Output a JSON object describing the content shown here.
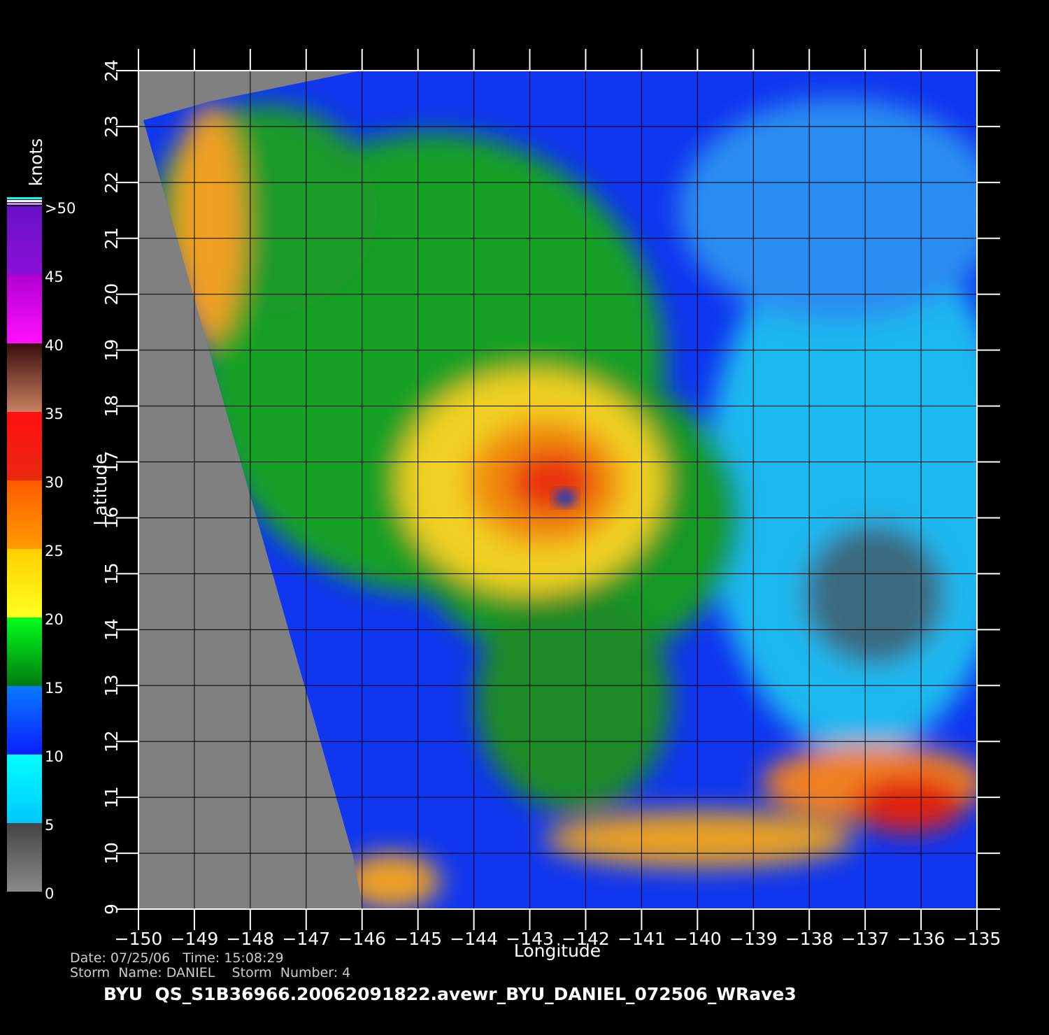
{
  "map": {
    "xlabel": "Longitude",
    "ylabel": "Latitude",
    "xlim": [
      -150,
      -135
    ],
    "ylim": [
      9,
      24
    ],
    "xticks": [
      {
        "value": -150,
        "label": "−150"
      },
      {
        "value": -149,
        "label": "−149"
      },
      {
        "value": -148,
        "label": "−148"
      },
      {
        "value": -147,
        "label": "−147"
      },
      {
        "value": -146,
        "label": "−146"
      },
      {
        "value": -145,
        "label": "−145"
      },
      {
        "value": -144,
        "label": "−144"
      },
      {
        "value": -143,
        "label": "−143"
      },
      {
        "value": -142,
        "label": "−142"
      },
      {
        "value": -141,
        "label": "−141"
      },
      {
        "value": -140,
        "label": "−140"
      },
      {
        "value": -139,
        "label": "−139"
      },
      {
        "value": -138,
        "label": "−138"
      },
      {
        "value": -137,
        "label": "−137"
      },
      {
        "value": -136,
        "label": "−136"
      },
      {
        "value": -135,
        "label": "−135"
      }
    ],
    "yticks": [
      9,
      10,
      11,
      12,
      13,
      14,
      15,
      16,
      17,
      18,
      19,
      20,
      21,
      22,
      23,
      24
    ]
  },
  "colorbar": {
    "label": "knots",
    "lim": [
      0,
      50
    ],
    "ticks": [
      0,
      5,
      10,
      15,
      20,
      25,
      30,
      35,
      40,
      45,
      {
        "value": 50,
        "label": ">50"
      }
    ],
    "colors": [
      [
        "#444444",
        "#8a8a8a"
      ],
      [
        "#00ffff",
        "#00c8ff"
      ],
      [
        "#0a7aff",
        "#0a1fff"
      ],
      [
        "#00ff1a",
        "#007a10"
      ],
      [
        "#ffd000",
        "#ffff20"
      ],
      [
        "#ff5a00",
        "#ff9c00"
      ],
      [
        "#ff1010",
        "#e82810"
      ],
      [
        "#3a0c0c",
        "#c88060"
      ],
      [
        "#b000d0",
        "#ff10ff"
      ],
      [
        "#6810c8",
        "#8a10d8"
      ]
    ]
  },
  "footer": {
    "line1": "Date: 07/25/06   Time: 15:08:29",
    "line2": "Storm  Name: DANIEL    Storm  Number: 4",
    "title": "BYU  QS_S1B36966.20062091822.avewr_BYU_DANIEL_072506_WRave3"
  }
}
